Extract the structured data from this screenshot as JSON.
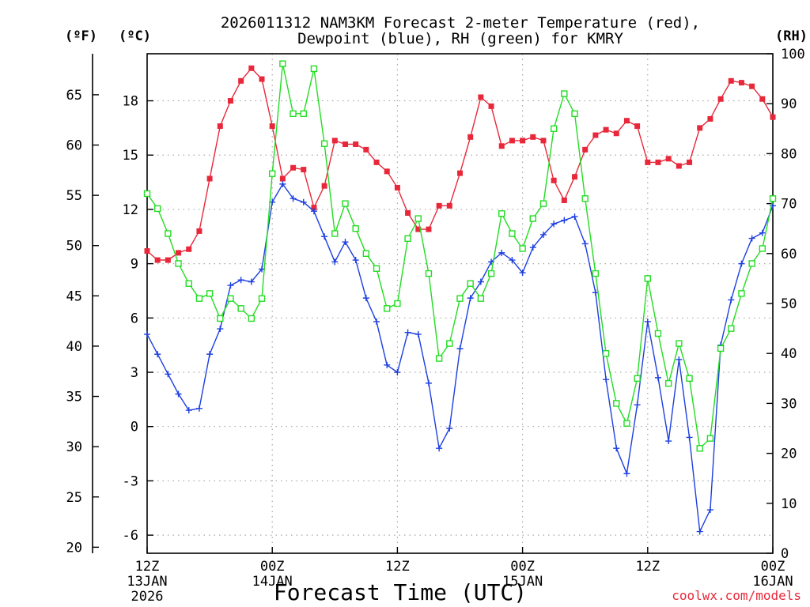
{
  "chart_data": {
    "type": "line",
    "title": "2026011312 NAM3KM Forecast 2-meter Temperature (red),",
    "title2": "Dewpoint (blue), RH (green) for KMRY",
    "xlabel": "Forecast Time (UTC)",
    "credit": "coolwx.com/models",
    "units": {
      "fahrenheit": "(ºF)",
      "celsius": "(ºC)",
      "rh": "(RH)"
    },
    "x_range_hours": [
      0,
      36
    ],
    "celsius_axis": {
      "range": [
        -7.0,
        20.6
      ],
      "ticks": [
        -6,
        -3,
        0,
        3,
        6,
        9,
        12,
        15,
        18
      ]
    },
    "fahrenheit_axis": {
      "ticks": [
        20,
        25,
        30,
        35,
        40,
        45,
        50,
        55,
        60,
        65
      ]
    },
    "rh_axis": {
      "range": [
        0,
        100
      ],
      "ticks": [
        0,
        10,
        20,
        30,
        40,
        50,
        60,
        70,
        80,
        90,
        100
      ]
    },
    "x_ticks": [
      {
        "hour": 0,
        "lines": [
          "12Z",
          "13JAN",
          "2026"
        ]
      },
      {
        "hour": 7.2,
        "lines": [
          "00Z",
          "14JAN"
        ]
      },
      {
        "hour": 14.4,
        "lines": [
          "12Z"
        ]
      },
      {
        "hour": 21.6,
        "lines": [
          "00Z",
          "15JAN"
        ]
      },
      {
        "hour": 28.8,
        "lines": [
          "12Z"
        ]
      },
      {
        "hour": 36,
        "lines": [
          "00Z",
          "16JAN"
        ]
      }
    ],
    "x": [
      0,
      0.6,
      1.2,
      1.8,
      2.4,
      3.0,
      3.6,
      4.2,
      4.8,
      5.4,
      6.0,
      6.6,
      7.2,
      7.8,
      8.4,
      9.0,
      9.6,
      10.2,
      10.8,
      11.4,
      12.0,
      12.6,
      13.2,
      13.8,
      14.4,
      15.0,
      15.6,
      16.2,
      16.8,
      17.4,
      18.0,
      18.6,
      19.2,
      19.8,
      20.4,
      21.0,
      21.6,
      22.2,
      22.8,
      23.4,
      24.0,
      24.6,
      25.2,
      25.8,
      26.4,
      27.0,
      27.6,
      28.2,
      28.8,
      29.4,
      30.0,
      30.6,
      31.2,
      31.8,
      32.4,
      33.0,
      33.6,
      34.2,
      34.8,
      35.4,
      36.0
    ],
    "series": [
      {
        "name": "2-meter Temperature",
        "color": "#e8283a",
        "axis": "celsius",
        "marker": "filled-square",
        "values": [
          9.7,
          9.2,
          9.2,
          9.6,
          9.8,
          10.8,
          13.7,
          16.6,
          18.0,
          19.1,
          19.8,
          19.2,
          16.6,
          13.7,
          14.3,
          14.2,
          12.1,
          13.3,
          15.8,
          15.6,
          15.6,
          15.3,
          14.6,
          14.1,
          13.2,
          11.8,
          10.9,
          10.9,
          12.2,
          12.2,
          14.0,
          16.0,
          18.2,
          17.7,
          15.5,
          15.8,
          15.8,
          16.0,
          15.8,
          13.6,
          12.5,
          13.8,
          15.3,
          16.1,
          16.4,
          16.2,
          16.9,
          16.6,
          14.6,
          14.6,
          14.8,
          14.4,
          14.6,
          16.5,
          17.0,
          18.1,
          19.1,
          19.0,
          18.8,
          18.1,
          17.1
        ]
      },
      {
        "name": "Dewpoint",
        "color": "#1d3fe0",
        "axis": "celsius",
        "marker": "plus",
        "values": [
          5.1,
          4.0,
          2.9,
          1.8,
          0.9,
          1.0,
          4.0,
          5.4,
          7.8,
          8.1,
          8.0,
          8.7,
          12.4,
          13.4,
          12.6,
          12.4,
          11.9,
          10.5,
          9.1,
          10.2,
          9.2,
          7.1,
          5.8,
          3.4,
          3.0,
          5.2,
          5.1,
          2.4,
          -1.2,
          -0.1,
          4.3,
          7.1,
          8.0,
          9.1,
          9.6,
          9.2,
          8.5,
          9.9,
          10.6,
          11.2,
          11.4,
          11.6,
          10.1,
          7.4,
          2.6,
          -1.2,
          -2.6,
          1.2,
          5.8,
          2.7,
          -0.8,
          3.7,
          -0.6,
          -5.8,
          -4.6,
          4.5,
          7.0,
          9.0,
          10.4,
          10.7,
          12.2
        ]
      },
      {
        "name": "RH",
        "color": "#22dd22",
        "axis": "rh",
        "marker": "open-square",
        "values": [
          72,
          69,
          64,
          58,
          54,
          51,
          52,
          47,
          51,
          49,
          47,
          51,
          76,
          98,
          88,
          88,
          97,
          82,
          64,
          70,
          65,
          60,
          57,
          49,
          50,
          63,
          67,
          56,
          39,
          42,
          51,
          54,
          51,
          56,
          68,
          64,
          61,
          67,
          70,
          85,
          92,
          88,
          71,
          56,
          40,
          30,
          26,
          35,
          55,
          44,
          34,
          42,
          35,
          21,
          23,
          41,
          45,
          52,
          58,
          61,
          71
        ]
      }
    ]
  }
}
